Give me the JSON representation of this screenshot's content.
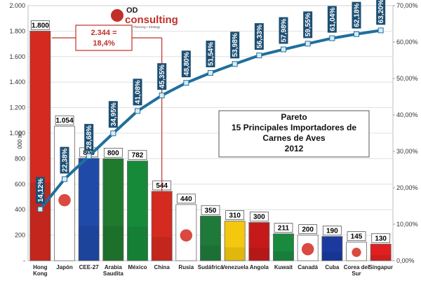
{
  "chart_data": {
    "type": "bar",
    "title_lines": [
      "Pareto",
      "15 Principales Importadores de",
      "Carnes de Aves",
      "2012"
    ],
    "ylabel": "000 tm",
    "ylim": [
      0,
      2000
    ],
    "y2lim": [
      0,
      70
    ],
    "y_ticks": [
      "-",
      "200",
      "400",
      "600",
      "800",
      "1.000",
      "1.200",
      "1.400",
      "1.600",
      "1.800",
      "2.000"
    ],
    "y2_ticks": [
      "0,00%",
      "10,00%",
      "20,00%",
      "30,00%",
      "40,00%",
      "50,00%",
      "60,00%",
      "70,00%"
    ],
    "categories": [
      "Hong Kong",
      "Japón",
      "CEE-27",
      "Arabia Saudita",
      "México",
      "China",
      "Rusia",
      "Sudáfrica",
      "Venezuela",
      "Angola",
      "Kuwait",
      "Canadá",
      "Cuba",
      "Corea del Sur",
      "Singapur"
    ],
    "values": [
      1800,
      1054,
      803,
      800,
      782,
      544,
      440,
      350,
      310,
      300,
      211,
      200,
      190,
      145,
      130
    ],
    "value_labels": [
      "1.800",
      "1.054",
      "803",
      "800",
      "782",
      "544",
      "440",
      "350",
      "310",
      "300",
      "211",
      "200",
      "190",
      "145",
      "130"
    ],
    "cumulative_pct": [
      14.12,
      22.38,
      28.68,
      34.95,
      41.08,
      45.35,
      48.8,
      51.54,
      53.98,
      56.33,
      57.98,
      59.55,
      61.04,
      62.18,
      63.2
    ],
    "cumulative_labels": [
      "14,12%",
      "22,38%",
      "28,68%",
      "34,95%",
      "41,08%",
      "45,35%",
      "48,80%",
      "51,54%",
      "53,98%",
      "56,33%",
      "57,98%",
      "59,55%",
      "61,04%",
      "62,18%",
      "63,20%"
    ],
    "annotation": [
      "2.344 =",
      "18,4%"
    ],
    "colors": {
      "line": "#1f6f9c",
      "marker": "#d8ecf6",
      "pct_label_bg": "#1d4f73",
      "annotation": "#c0302a",
      "bar_fill": [
        "#d42a1f",
        "#ffffff",
        "#1f4aa8",
        "#1f7a2e",
        "#178a3a",
        "#d42a1f",
        "#ffffff",
        "#1f7a3a",
        "#f4c80f",
        "#c61a1a",
        "#1a8a3e",
        "#ffffff",
        "#1a3aa0",
        "#ffffff",
        "#e02020"
      ]
    }
  },
  "logo": {
    "od": "OD",
    "consulting": "consulting",
    "tagline": "Planning • Strategy"
  }
}
